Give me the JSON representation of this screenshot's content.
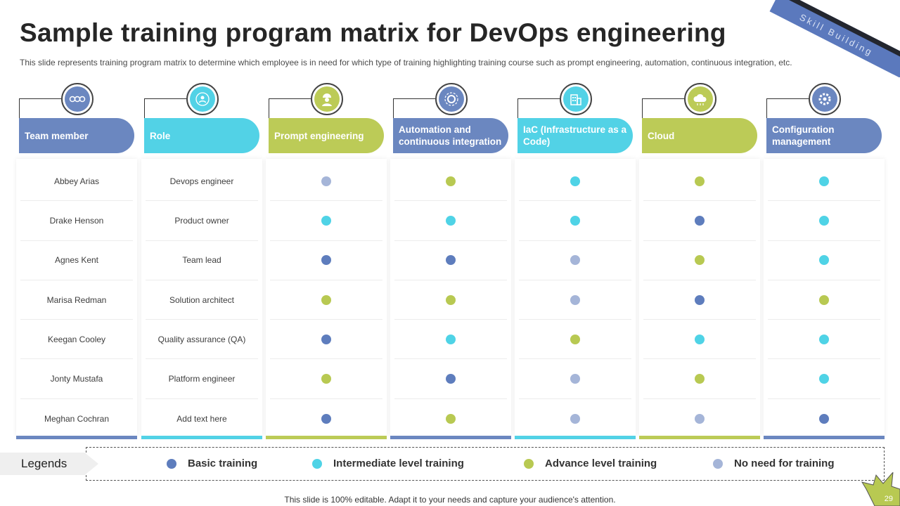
{
  "ribbon_text": "Skill Building",
  "title": "Sample training program matrix for DevOps engineering",
  "subtitle": "This slide represents training program matrix to determine which employee is in need for which type of training highlighting training course such as prompt engineering, automation, continuous integration, etc.",
  "colors": {
    "basic": "#5e7dbd",
    "intermediate": "#4fd3e6",
    "advance": "#b8c952",
    "none": "#a5b5d8"
  },
  "columns": [
    {
      "header": "Team member",
      "color": "#6b87c0",
      "icon": "people-group-icon"
    },
    {
      "header": "Role",
      "color": "#52d2e6",
      "icon": "user-network-icon"
    },
    {
      "header": "Prompt engineering",
      "color": "#bccb57",
      "icon": "engineer-icon"
    },
    {
      "header": "Automation and continuous integration",
      "color": "#6b87c0",
      "icon": "automation-gear-icon"
    },
    {
      "header": "IaC (Infrastructure as a Code)",
      "color": "#52d2e6",
      "icon": "infrastructure-building-icon"
    },
    {
      "header": "Cloud",
      "color": "#bccb57",
      "icon": "cloud-icon"
    },
    {
      "header": "Configuration management",
      "color": "#6b87c0",
      "icon": "config-gear-icon"
    }
  ],
  "rows": [
    {
      "member": "Abbey Arias",
      "role": "Devops engineer",
      "levels": [
        "none",
        "advance",
        "intermediate",
        "advance",
        "intermediate"
      ]
    },
    {
      "member": "Drake Henson",
      "role": "Product owner",
      "levels": [
        "intermediate",
        "intermediate",
        "intermediate",
        "basic",
        "intermediate"
      ]
    },
    {
      "member": "Agnes Kent",
      "role": "Team lead",
      "levels": [
        "basic",
        "basic",
        "none",
        "advance",
        "intermediate"
      ]
    },
    {
      "member": "Marisa Redman",
      "role": "Solution architect",
      "levels": [
        "advance",
        "advance",
        "none",
        "basic",
        "advance"
      ]
    },
    {
      "member": "Keegan Cooley",
      "role": "Quality assurance (QA)",
      "levels": [
        "basic",
        "intermediate",
        "advance",
        "intermediate",
        "intermediate"
      ]
    },
    {
      "member": "Jonty Mustafa",
      "role": "Platform engineer",
      "levels": [
        "advance",
        "basic",
        "none",
        "advance",
        "intermediate"
      ]
    },
    {
      "member": "Meghan Cochran",
      "role": "Add text here",
      "levels": [
        "basic",
        "advance",
        "none",
        "none",
        "basic"
      ]
    }
  ],
  "legend": {
    "title": "Legends",
    "items": [
      {
        "key": "basic",
        "label": "Basic training"
      },
      {
        "key": "intermediate",
        "label": "Intermediate level training"
      },
      {
        "key": "advance",
        "label": "Advance level training"
      },
      {
        "key": "none",
        "label": "No need for training"
      }
    ]
  },
  "footer": "This slide is 100% editable. Adapt it to your needs and capture your audience's attention.",
  "page_number": "29"
}
